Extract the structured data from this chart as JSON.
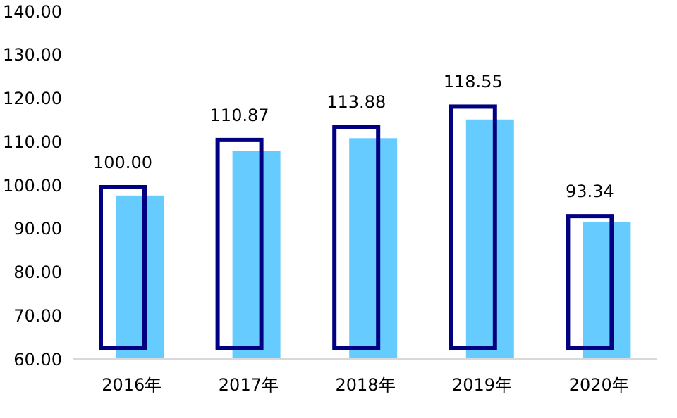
{
  "chart_data": {
    "type": "bar",
    "categories": [
      "2016年",
      "2017年",
      "2018年",
      "2019年",
      "2020年"
    ],
    "series": [
      {
        "color": "#000080",
        "base": [
          62,
          62,
          62,
          62,
          62
        ],
        "values": [
          38.0,
          48.87,
          51.88,
          56.55,
          31.34
        ],
        "value_labels": [
          "100.00",
          "110.87",
          "113.88",
          "118.55",
          "93.34"
        ]
      },
      {
        "color": "#66ccff",
        "values": [
          97.6,
          107.9,
          110.8,
          115.1,
          91.5
        ]
      }
    ],
    "ylim": [
      60,
      140
    ],
    "yticks": [
      {
        "value": 60,
        "label": "60.00"
      },
      {
        "value": 70,
        "label": "70.00"
      },
      {
        "value": 80,
        "label": "80.00"
      },
      {
        "value": 90,
        "label": "90.00"
      },
      {
        "value": 100,
        "label": "100.00"
      },
      {
        "value": 110,
        "label": "110.00"
      },
      {
        "value": 120,
        "label": "120.00"
      },
      {
        "value": 130,
        "label": "130.00"
      },
      {
        "value": 140,
        "label": "140.00"
      }
    ],
    "grid": false,
    "legend": false
  }
}
